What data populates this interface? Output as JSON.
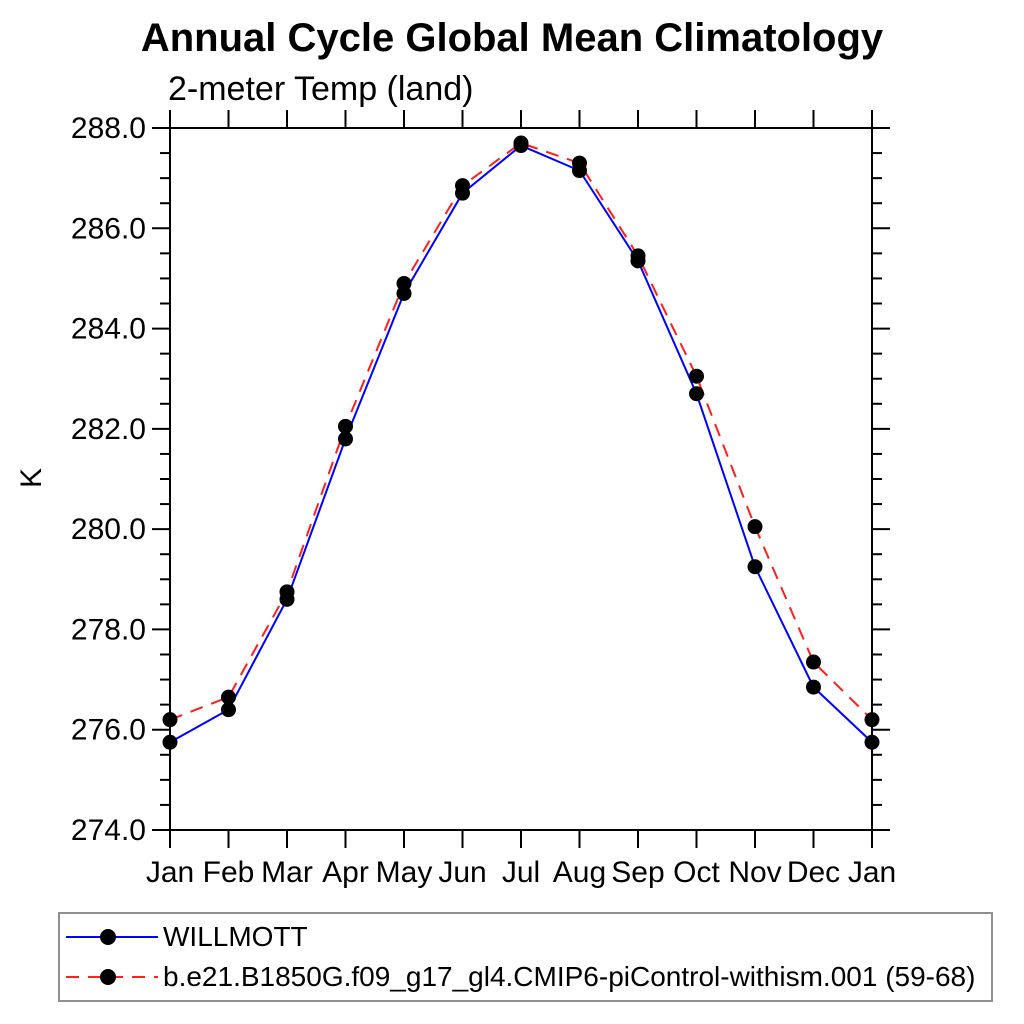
{
  "title": "Annual Cycle Global Mean Climatology",
  "subtitle": "2-meter Temp (land)",
  "ylabel": "K",
  "colors": {
    "willmott_line": "#0000ff",
    "model_line": "#ff2020",
    "marker": "#000000",
    "axis": "#000000",
    "legend_border": "#8f8f8f",
    "background": "#ffffff"
  },
  "chart_data": {
    "type": "line",
    "title": "Annual Cycle Global Mean Climatology",
    "subtitle": "2-meter Temp (land)",
    "xlabel": "",
    "ylabel": "K",
    "categories": [
      "Jan",
      "Feb",
      "Mar",
      "Apr",
      "May",
      "Jun",
      "Jul",
      "Aug",
      "Sep",
      "Oct",
      "Nov",
      "Dec",
      "Jan"
    ],
    "series": [
      {
        "name": "WILLMOTT",
        "color": "#0000ff",
        "style": "solid",
        "marker": "filled-circle",
        "values": [
          275.75,
          276.4,
          278.6,
          281.8,
          284.7,
          286.7,
          287.65,
          287.15,
          285.35,
          282.7,
          279.25,
          276.85,
          275.75
        ]
      },
      {
        "name": "b.e21.B1850G.f09_g17_gl4.CMIP6-piControl-withism.001 (59-68)",
        "color": "#ff2020",
        "style": "dashed",
        "marker": "filled-circle",
        "values": [
          276.2,
          276.65,
          278.75,
          282.05,
          284.9,
          286.85,
          287.7,
          287.3,
          285.45,
          283.05,
          280.05,
          277.35,
          276.2
        ]
      }
    ],
    "ylim": [
      274.0,
      288.0
    ],
    "ytick_major_interval": 2.0,
    "ytick_minor_interval": 0.5,
    "ytick_labels": [
      "274.0",
      "276.0",
      "278.0",
      "280.0",
      "282.0",
      "284.0",
      "286.0",
      "288.0"
    ],
    "grid": false,
    "ticks_direction": "out",
    "legend_position": "bottom-left-box"
  },
  "legend": {
    "items": [
      {
        "label": "WILLMOTT"
      },
      {
        "label": "b.e21.B1850G.f09_g17_gl4.CMIP6-piControl-withism.001 (59-68)"
      }
    ]
  }
}
